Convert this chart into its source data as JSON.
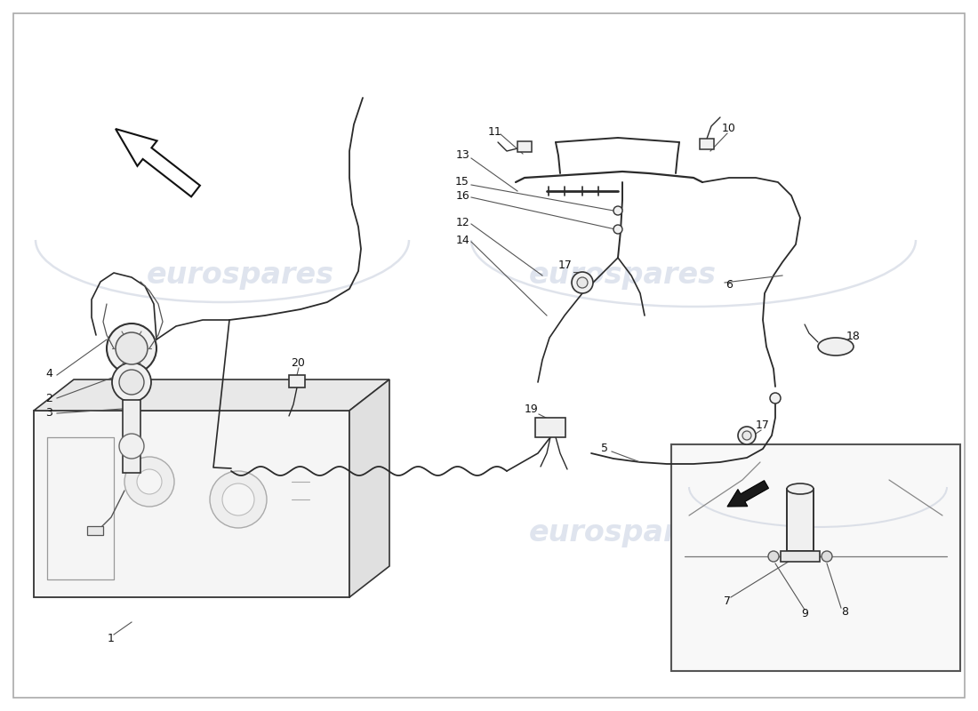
{
  "bg_color": "#ffffff",
  "border_color": "#aaaaaa",
  "line_color": "#2a2a2a",
  "label_color": "#111111",
  "wm_color": "#c5cfe0",
  "wm_text": "eurospares",
  "wm_fs": 24,
  "lw": 1.3,
  "fs": 9,
  "comp_fill": "#f0f0f0",
  "comp_edge": "#333333",
  "arrow_fill": "#ffffff",
  "arrow_edge": "#111111"
}
